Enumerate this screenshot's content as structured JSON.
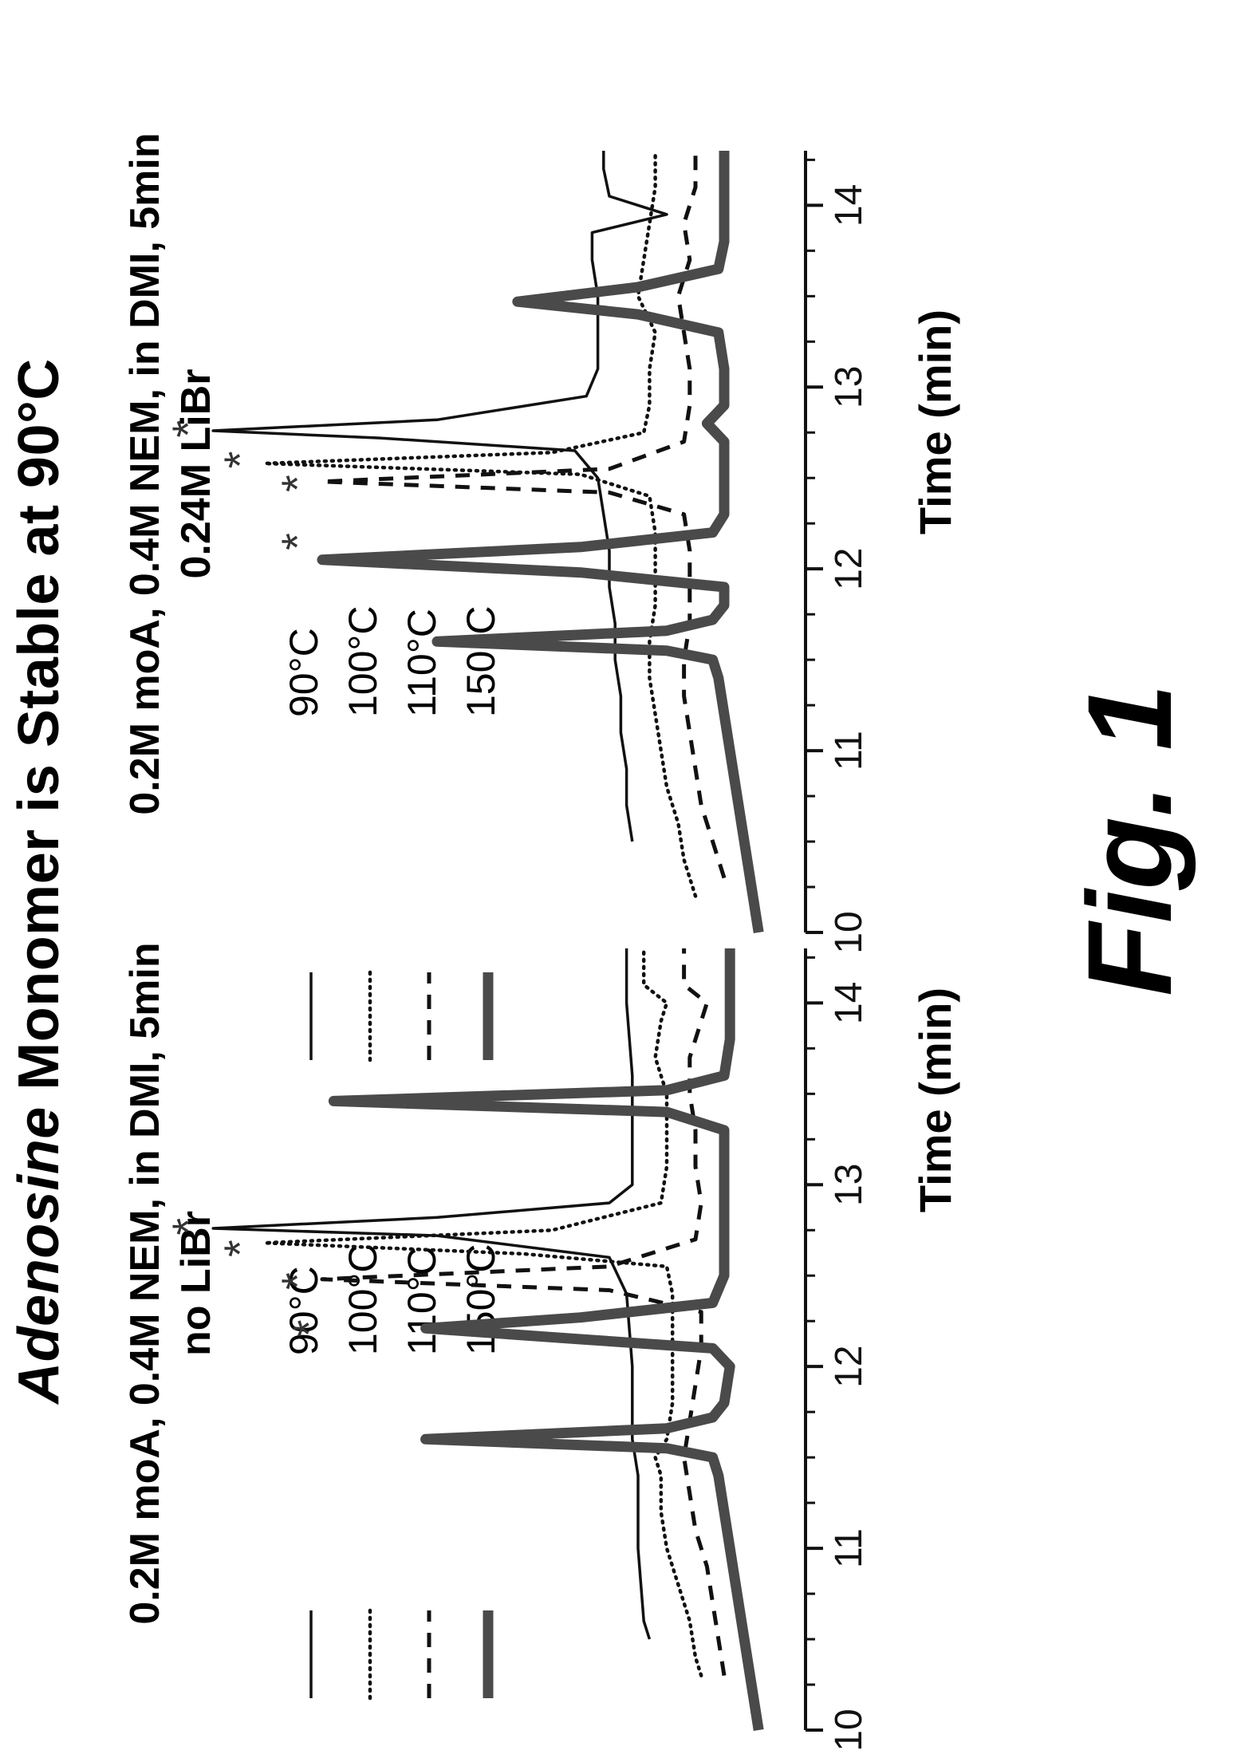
{
  "figure": {
    "title_prefix": "Adenosine",
    "title_suffix": " Monomer is Stable at 90°C",
    "label": "Fig. 1"
  },
  "colors": {
    "ink": "#111111",
    "stipple": "#4a4a4a",
    "asterisk": "#333333"
  },
  "chart_data": [
    {
      "type": "line",
      "title": "0.2M moA, 0.4M NEM, in DMI, 5min",
      "subtitle": "no LiBr",
      "xlabel": "Time (min)",
      "ylabel": "",
      "xlim": [
        10,
        14.3
      ],
      "xticks": [
        10,
        11,
        12,
        13,
        14
      ],
      "legend_position": "left",
      "series": [
        {
          "name": "90°C",
          "style": "solid-thin",
          "x": [
            10.5,
            10.6,
            10.8,
            11.0,
            11.2,
            11.4,
            11.5,
            11.6,
            11.7,
            11.8,
            12.0,
            12.2,
            12.4,
            12.6,
            12.72,
            12.76,
            12.82,
            12.9,
            13.0,
            13.2,
            13.4,
            13.6,
            13.8,
            14.0,
            14.1,
            14.3
          ],
          "y": [
            0.23,
            0.24,
            0.245,
            0.25,
            0.25,
            0.25,
            0.255,
            0.26,
            0.26,
            0.26,
            0.26,
            0.265,
            0.27,
            0.3,
            0.6,
            0.99,
            0.6,
            0.3,
            0.26,
            0.26,
            0.26,
            0.26,
            0.265,
            0.27,
            0.27,
            0.27
          ],
          "peaks": [
            {
              "x": 12.77,
              "label": "*"
            }
          ]
        },
        {
          "name": "100°C",
          "style": "dotted",
          "x": [
            10.3,
            10.4,
            10.6,
            10.8,
            11.0,
            11.2,
            11.4,
            11.5,
            11.6,
            11.8,
            12.0,
            12.2,
            12.4,
            12.55,
            12.62,
            12.68,
            12.75,
            12.9,
            13.1,
            13.3,
            13.5,
            13.7,
            13.9,
            14.0,
            14.1,
            14.3
          ],
          "y": [
            0.14,
            0.15,
            0.16,
            0.18,
            0.2,
            0.21,
            0.21,
            0.22,
            0.2,
            0.19,
            0.19,
            0.19,
            0.19,
            0.2,
            0.45,
            0.9,
            0.4,
            0.21,
            0.2,
            0.2,
            0.2,
            0.22,
            0.21,
            0.2,
            0.24,
            0.24
          ],
          "peaks": [
            {
              "x": 12.65,
              "label": "*"
            }
          ]
        },
        {
          "name": "110°C",
          "style": "dashed",
          "x": [
            10.3,
            10.5,
            10.7,
            10.9,
            11.1,
            11.3,
            11.5,
            11.7,
            11.9,
            12.1,
            12.3,
            12.42,
            12.48,
            12.55,
            12.7,
            12.9,
            13.1,
            13.3,
            13.5,
            13.7,
            13.9,
            14.0,
            14.1,
            14.3
          ],
          "y": [
            0.1,
            0.11,
            0.12,
            0.13,
            0.15,
            0.16,
            0.17,
            0.16,
            0.15,
            0.14,
            0.14,
            0.3,
            0.8,
            0.3,
            0.15,
            0.14,
            0.15,
            0.15,
            0.16,
            0.16,
            0.14,
            0.13,
            0.17,
            0.17
          ],
          "peaks": [
            {
              "x": 12.47,
              "label": "*"
            }
          ]
        },
        {
          "name": "150°C",
          "style": "stippled-thick",
          "x": [
            10.0,
            10.2,
            10.4,
            10.6,
            10.8,
            11.0,
            11.2,
            11.4,
            11.5,
            11.55,
            11.6,
            11.66,
            11.72,
            11.8,
            12.0,
            12.1,
            12.15,
            12.21,
            12.27,
            12.35,
            12.5,
            12.7,
            12.9,
            13.1,
            13.3,
            13.4,
            13.46,
            13.52,
            13.6,
            13.8,
            14.0,
            14.2,
            14.3
          ],
          "y": [
            0.04,
            0.05,
            0.06,
            0.07,
            0.08,
            0.09,
            0.1,
            0.11,
            0.12,
            0.2,
            0.62,
            0.2,
            0.12,
            0.1,
            0.09,
            0.12,
            0.35,
            0.62,
            0.35,
            0.12,
            0.1,
            0.1,
            0.1,
            0.1,
            0.1,
            0.2,
            0.78,
            0.2,
            0.1,
            0.09,
            0.09,
            0.09,
            0.09
          ],
          "peaks": [
            {
              "x": 12.21,
              "label": "*"
            }
          ]
        }
      ]
    },
    {
      "type": "line",
      "title": "0.2M moA, 0.4M NEM, in DMI, 5min",
      "subtitle": "0.24M LiBr",
      "xlabel": "Time (min)",
      "ylabel": "",
      "xlim": [
        10,
        14.3
      ],
      "xticks": [
        10,
        11,
        12,
        13,
        14
      ],
      "legend_position": "left",
      "series": [
        {
          "name": "90°C",
          "style": "solid-thin",
          "x": [
            10.5,
            10.7,
            10.9,
            11.1,
            11.3,
            11.5,
            11.7,
            11.9,
            12.1,
            12.3,
            12.5,
            12.65,
            12.72,
            12.76,
            12.82,
            12.95,
            13.1,
            13.3,
            13.5,
            13.7,
            13.85,
            13.95,
            14.05,
            14.2,
            14.3
          ],
          "y": [
            0.26,
            0.27,
            0.27,
            0.28,
            0.28,
            0.29,
            0.29,
            0.3,
            0.3,
            0.31,
            0.32,
            0.36,
            0.7,
            0.99,
            0.6,
            0.34,
            0.32,
            0.32,
            0.32,
            0.33,
            0.33,
            0.2,
            0.3,
            0.31,
            0.31
          ],
          "peaks": [
            {
              "x": 12.77,
              "label": "*"
            }
          ]
        },
        {
          "name": "100°C",
          "style": "dotted",
          "x": [
            10.2,
            10.4,
            10.6,
            10.8,
            11.0,
            11.2,
            11.4,
            11.6,
            11.8,
            12.0,
            12.2,
            12.4,
            12.52,
            12.58,
            12.64,
            12.75,
            12.9,
            13.1,
            13.3,
            13.5,
            13.7,
            13.9,
            14.1,
            14.3
          ],
          "y": [
            0.15,
            0.17,
            0.18,
            0.2,
            0.21,
            0.22,
            0.23,
            0.23,
            0.22,
            0.22,
            0.22,
            0.23,
            0.35,
            0.9,
            0.4,
            0.24,
            0.23,
            0.23,
            0.22,
            0.25,
            0.24,
            0.23,
            0.22,
            0.22
          ],
          "peaks": [
            {
              "x": 12.6,
              "label": "*"
            }
          ]
        },
        {
          "name": "110°C",
          "style": "dashed",
          "x": [
            10.3,
            10.5,
            10.7,
            10.9,
            11.1,
            11.3,
            11.5,
            11.7,
            11.9,
            12.1,
            12.3,
            12.42,
            12.48,
            12.55,
            12.7,
            12.9,
            13.1,
            13.3,
            13.5,
            13.7,
            13.9,
            14.1,
            14.3
          ],
          "y": [
            0.1,
            0.12,
            0.14,
            0.15,
            0.16,
            0.17,
            0.17,
            0.16,
            0.16,
            0.16,
            0.17,
            0.3,
            0.8,
            0.3,
            0.17,
            0.16,
            0.16,
            0.17,
            0.18,
            0.16,
            0.17,
            0.15,
            0.15
          ],
          "peaks": [
            {
              "x": 12.47,
              "label": "*"
            }
          ]
        },
        {
          "name": "150°C",
          "style": "stippled-thick",
          "x": [
            10.0,
            10.2,
            10.4,
            10.6,
            10.8,
            11.0,
            11.2,
            11.4,
            11.5,
            11.55,
            11.6,
            11.66,
            11.72,
            11.8,
            11.9,
            11.98,
            12.05,
            12.12,
            12.2,
            12.3,
            12.5,
            12.7,
            12.8,
            12.9,
            13.1,
            13.3,
            13.4,
            13.47,
            13.55,
            13.65,
            13.8,
            14.0,
            14.2,
            14.3
          ],
          "y": [
            0.04,
            0.05,
            0.06,
            0.07,
            0.08,
            0.09,
            0.1,
            0.11,
            0.12,
            0.2,
            0.6,
            0.2,
            0.12,
            0.1,
            0.1,
            0.35,
            0.8,
            0.35,
            0.12,
            0.1,
            0.1,
            0.1,
            0.13,
            0.1,
            0.1,
            0.11,
            0.25,
            0.46,
            0.25,
            0.11,
            0.1,
            0.1,
            0.1,
            0.1
          ],
          "peaks": [
            {
              "x": 12.15,
              "label": "*"
            }
          ]
        }
      ]
    }
  ]
}
